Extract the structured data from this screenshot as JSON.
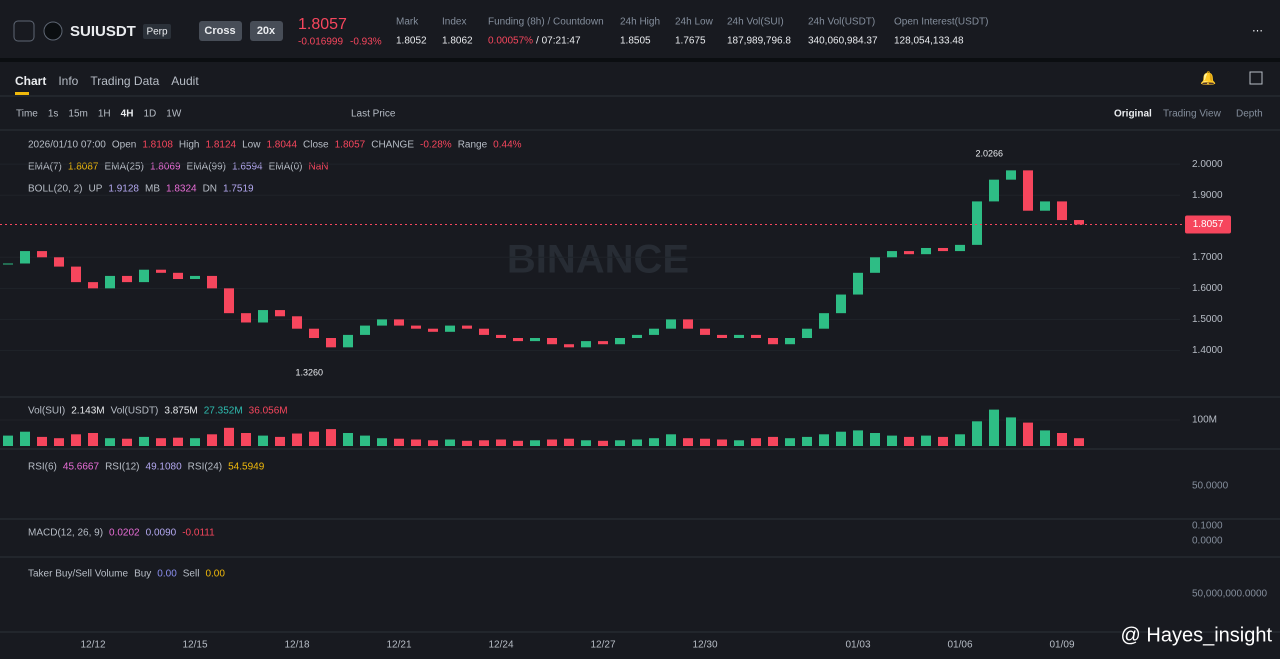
{
  "header": {
    "symbol": "SUIUSDT",
    "contract": "Perp",
    "margin": "Cross",
    "leverage": "20x",
    "price": "1.8057",
    "change": "-0.016999",
    "change_pct": "-0.93%",
    "stats": [
      {
        "label": "Mark",
        "value": "1.8052"
      },
      {
        "label": "Index",
        "value": "1.8062"
      },
      {
        "label": "Funding (8h) / Countdown",
        "value": "0.00057%",
        "countdown": "/ 07:21:47"
      },
      {
        "label": "24h High",
        "value": "1.8505"
      },
      {
        "label": "24h Low",
        "value": "1.7675"
      },
      {
        "label": "24h Vol(SUI)",
        "value": "187,989,796.8"
      },
      {
        "label": "24h Vol(USDT)",
        "value": "340,060,984.37"
      },
      {
        "label": "Open Interest(USDT)",
        "value": "128,054,133.48"
      }
    ]
  },
  "tabs": [
    "Chart",
    "Info",
    "Trading Data",
    "Audit"
  ],
  "intervals": [
    "Time",
    "1s",
    "15m",
    "1H",
    "4H",
    "1D",
    "1W"
  ],
  "price_type": "Last Price",
  "views": [
    "Original",
    "Trading View",
    "Depth"
  ],
  "legend_rows": [
    [
      {
        "text": "2026/01/10 07:00",
        "color": "#b7bdc6"
      },
      {
        "text": "Open",
        "color": "#b7bdc6"
      },
      {
        "text": "1.8108",
        "color": "#f6465d"
      },
      {
        "text": "High",
        "color": "#b7bdc6"
      },
      {
        "text": "1.8124",
        "color": "#f6465d"
      },
      {
        "text": "Low",
        "color": "#b7bdc6"
      },
      {
        "text": "1.8044",
        "color": "#f6465d"
      },
      {
        "text": "Close",
        "color": "#b7bdc6"
      },
      {
        "text": "1.8057",
        "color": "#f6465d"
      },
      {
        "text": "CHANGE",
        "color": "#b7bdc6"
      },
      {
        "text": "-0.28%",
        "color": "#f6465d"
      },
      {
        "text": "Range",
        "color": "#b7bdc6"
      },
      {
        "text": "0.44%",
        "color": "#f6465d"
      }
    ],
    [
      {
        "text": "EMA(7)",
        "color": "#b7bdc6"
      },
      {
        "text": "1.8087",
        "color": "#f0b90b"
      },
      {
        "text": "EMA(25)",
        "color": "#b7bdc6"
      },
      {
        "text": "1.8069",
        "color": "#e86dd6"
      },
      {
        "text": "EMA(99)",
        "color": "#b7bdc6"
      },
      {
        "text": "1.6594",
        "color": "#b3a8f0"
      },
      {
        "text": "EMA(0)",
        "color": "#b7bdc6"
      },
      {
        "text": "NaN",
        "color": "#f6465d"
      }
    ],
    [
      {
        "text": "BOLL(20, 2)",
        "color": "#b7bdc6"
      },
      {
        "text": "UP",
        "color": "#b7bdc6"
      },
      {
        "text": "1.9128",
        "color": "#b3a8f0"
      },
      {
        "text": "MB",
        "color": "#b7bdc6"
      },
      {
        "text": "1.8324",
        "color": "#e86dd6"
      },
      {
        "text": "DN",
        "color": "#b7bdc6"
      },
      {
        "text": "1.7519",
        "color": "#b3a8f0"
      }
    ]
  ],
  "panels": [
    {
      "row": [
        {
          "text": "Vol(SUI)",
          "color": "#b7bdc6"
        },
        {
          "text": "2.143M",
          "color": "#eaecef"
        },
        {
          "text": "Vol(USDT)",
          "color": "#b7bdc6"
        },
        {
          "text": "3.875M",
          "color": "#eaecef"
        },
        {
          "text": "27.352M",
          "color": "#2ebdb0"
        },
        {
          "text": "36.056M",
          "color": "#f6465d"
        }
      ]
    },
    {
      "row": [
        {
          "text": "RSI(6)",
          "color": "#b7bdc6"
        },
        {
          "text": "45.6667",
          "color": "#e86dd6"
        },
        {
          "text": "RSI(12)",
          "color": "#b7bdc6"
        },
        {
          "text": "49.1080",
          "color": "#b3a8f0"
        },
        {
          "text": "RSI(24)",
          "color": "#b7bdc6"
        },
        {
          "text": "54.5949",
          "color": "#f0b90b"
        }
      ],
      "ticks": [
        "50.0000"
      ]
    },
    {
      "row": [
        {
          "text": "MACD(12, 26, 9)",
          "color": "#b7bdc6"
        },
        {
          "text": "0.0202",
          "color": "#e86dd6"
        },
        {
          "text": "0.0090",
          "color": "#b3a8f0"
        },
        {
          "text": "-0.0111",
          "color": "#f6465d"
        }
      ],
      "ticks": [
        "0.1000",
        "0.0000"
      ]
    },
    {
      "row": [
        {
          "text": "Taker Buy/Sell Volume",
          "color": "#b7bdc6"
        },
        {
          "text": "Buy",
          "color": "#b7bdc6"
        },
        {
          "text": "0.00",
          "color": "#8b8ff0"
        },
        {
          "text": "Sell",
          "color": "#b7bdc6"
        },
        {
          "text": "0.00",
          "color": "#f0b90b"
        }
      ],
      "ticks": [
        "50,000,000.0000"
      ]
    }
  ],
  "watermark": "BINANCE",
  "credit": "@ Hayes_insight",
  "chart_data": {
    "type": "candlestick",
    "up_color": "#2ebd85",
    "down_color": "#f6465d",
    "categories": [
      null,
      null,
      null,
      null,
      null,
      "12/12",
      null,
      null,
      null,
      null,
      null,
      "12/15",
      null,
      null,
      null,
      null,
      null,
      "12/18",
      null,
      null,
      null,
      null,
      null,
      "12/21",
      null,
      null,
      null,
      null,
      null,
      "12/24",
      null,
      null,
      null,
      null,
      null,
      "12/27",
      null,
      null,
      null,
      null,
      null,
      "12/30",
      null,
      null,
      null,
      null,
      null,
      null,
      null,
      null,
      "01/03",
      null,
      null,
      null,
      null,
      null,
      "01/06",
      null,
      null,
      null,
      null,
      null,
      "01/09",
      null
    ],
    "values": [
      1.68,
      1.72,
      1.7,
      1.67,
      1.62,
      1.6,
      1.64,
      1.62,
      1.66,
      1.65,
      1.63,
      1.64,
      1.6,
      1.52,
      1.49,
      1.53,
      1.51,
      1.47,
      1.44,
      1.41,
      1.45,
      1.48,
      1.5,
      1.48,
      1.47,
      1.46,
      1.48,
      1.47,
      1.45,
      1.44,
      1.43,
      1.44,
      1.42,
      1.41,
      1.43,
      1.42,
      1.44,
      1.45,
      1.47,
      1.5,
      1.47,
      1.45,
      1.44,
      1.45,
      1.44,
      1.42,
      1.44,
      1.47,
      1.52,
      1.58,
      1.65,
      1.7,
      1.72,
      1.71,
      1.73,
      1.72,
      1.74,
      1.88,
      1.95,
      1.98,
      1.85,
      1.88,
      1.82,
      1.8057
    ],
    "ylim": [
      1.25,
      2.11
    ],
    "yticks": [
      {
        "value": 1.4,
        "label": "1.4000"
      },
      {
        "value": 1.5,
        "label": "1.5000"
      },
      {
        "value": 1.6,
        "label": "1.6000"
      },
      {
        "value": 1.7,
        "label": "1.7000"
      },
      {
        "value": 1.9,
        "label": "1.9000"
      },
      {
        "value": 2.0,
        "label": "2.0000"
      }
    ],
    "price_tag": "1.8057",
    "high_label": "2.0266",
    "low_label": "1.3260",
    "volume": [
      40000000,
      55000000,
      35000000,
      30000000,
      45000000,
      50000000,
      30000000,
      28000000,
      35000000,
      30000000,
      32000000,
      30000000,
      45000000,
      70000000,
      50000000,
      40000000,
      35000000,
      48000000,
      55000000,
      65000000,
      50000000,
      40000000,
      30000000,
      28000000,
      25000000,
      22000000,
      25000000,
      20000000,
      22000000,
      25000000,
      20000000,
      22000000,
      25000000,
      28000000,
      22000000,
      20000000,
      22000000,
      25000000,
      30000000,
      45000000,
      30000000,
      28000000,
      25000000,
      22000000,
      30000000,
      35000000,
      30000000,
      35000000,
      45000000,
      55000000,
      60000000,
      50000000,
      40000000,
      35000000,
      40000000,
      35000000,
      45000000,
      95000000,
      140000000,
      110000000,
      90000000,
      60000000,
      50000000,
      30000000
    ],
    "volume_ylim": [
      0,
      177000000
    ],
    "volume_ticks": [
      {
        "value": 100000000,
        "label": "100M"
      }
    ]
  }
}
